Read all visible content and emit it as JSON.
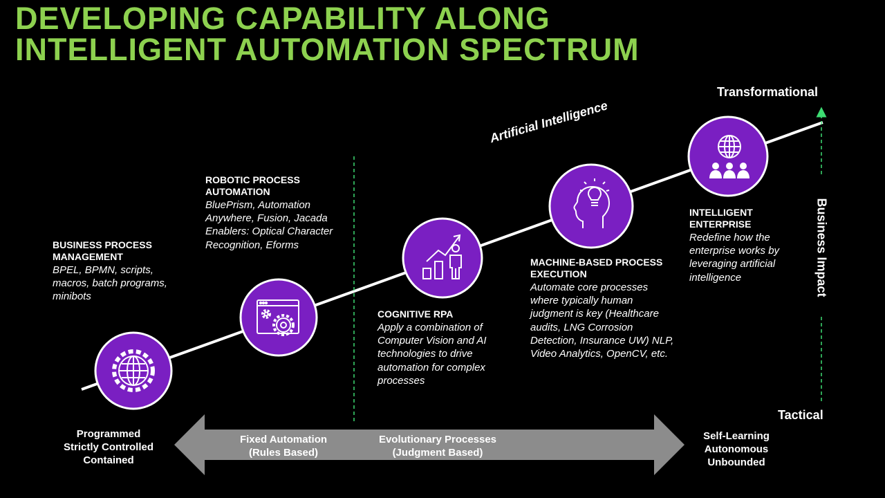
{
  "title_line1": "DEVELOPING CAPABILITY ALONG",
  "title_line2": "INTELLIGENT AUTOMATION SPECTRUM",
  "colors": {
    "title": "#8dd14f",
    "circle": "#7a1fc2",
    "guide": "#3ddc72",
    "arrow": "#8c8c8c"
  },
  "stages": [
    {
      "head": "BUSINESS PROCESS MANAGEMENT",
      "desc": "BPEL, BPMN, scripts, macros, batch programs, minibots",
      "icon": "globe-gear-icon"
    },
    {
      "head": "ROBOTIC PROCESS AUTOMATION",
      "desc": "BluePrism, Automation Anywhere, Fusion, Jacada Enablers: Optical Character Recognition, Eforms",
      "icon": "browser-gears-icon"
    },
    {
      "head": "COGNITIVE RPA",
      "desc": "Apply a combination of Computer Vision and AI technologies to drive automation for complex processes",
      "icon": "growth-chart-person-icon"
    },
    {
      "head": "MACHINE-BASED PROCESS EXECUTION",
      "desc": "Automate core processes where typically  human judgment is key (Healthcare audits, LNG Corrosion Detection, Insurance UW) NLP, Video Analytics, OpenCV, etc.",
      "icon": "head-lightbulb-icon"
    },
    {
      "head": "INTELLIGENT ENTERPRISE",
      "desc": "Redefine how the enterprise works by leveraging artificial intelligence",
      "icon": "globe-people-icon"
    }
  ],
  "ai_label": "Artificial Intelligence",
  "axis": {
    "top": "Transformational",
    "bottom": "Tactical",
    "side": "Business Impact"
  },
  "left_label": [
    "Programmed",
    "Strictly Controlled",
    "Contained"
  ],
  "right_label": [
    "Self-Learning",
    "Autonomous",
    "Unbounded"
  ],
  "arrow_labels": [
    {
      "line1": "Fixed Automation",
      "line2": "(Rules Based)"
    },
    {
      "line1": "Evolutionary Processes",
      "line2": "(Judgment Based)"
    }
  ]
}
